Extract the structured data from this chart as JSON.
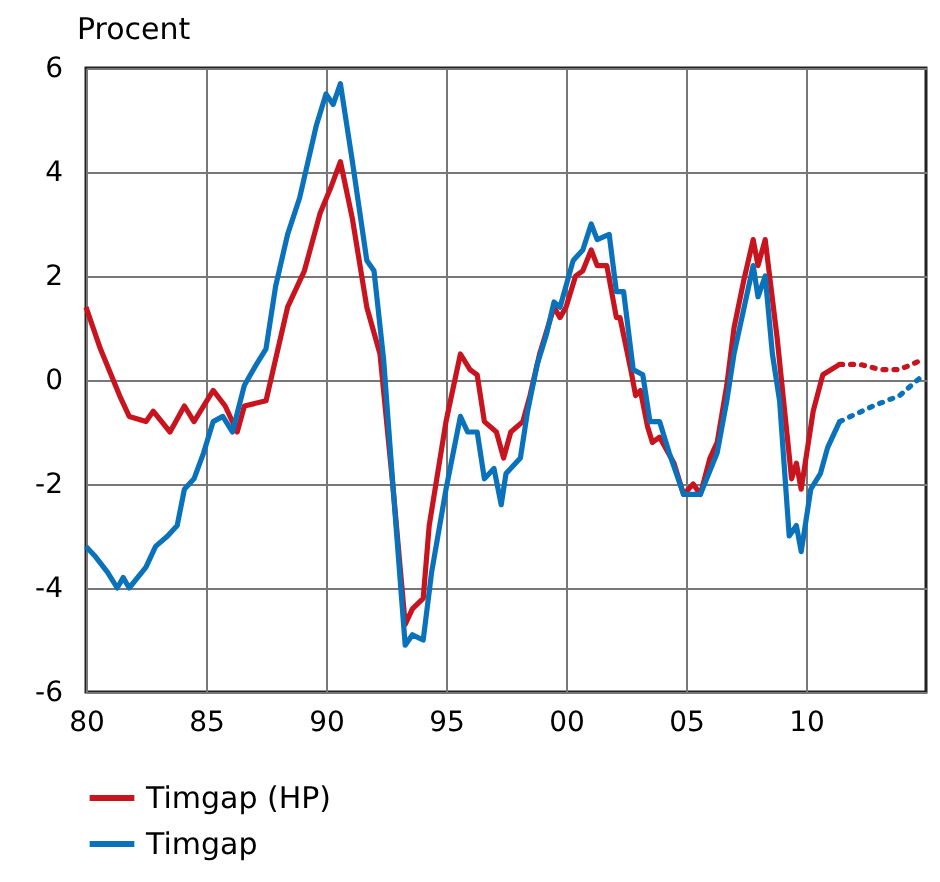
{
  "chart_data": {
    "type": "line",
    "ylabel": "Procent",
    "xlim": [
      1980,
      2015
    ],
    "xticks": [
      {
        "value": 1980,
        "label": "80"
      },
      {
        "value": 1985,
        "label": "85"
      },
      {
        "value": 1990,
        "label": "90"
      },
      {
        "value": 1995,
        "label": "95"
      },
      {
        "value": 2000,
        "label": "00"
      },
      {
        "value": 2005,
        "label": "05"
      },
      {
        "value": 2010,
        "label": "10"
      }
    ],
    "ylim": [
      -6,
      6
    ],
    "yticks": [
      -6,
      -4,
      -2,
      0,
      2,
      4,
      6
    ],
    "grid": true,
    "legend": "bottom",
    "series": [
      {
        "name": "Timgap (HP)",
        "color": "#c8141e",
        "line_style": "solid",
        "x": [
          1980.0,
          1980.6,
          1981.4,
          1981.8,
          1982.5,
          1982.8,
          1983.5,
          1984.1,
          1984.5,
          1985.3,
          1985.8,
          1986.3,
          1986.6,
          1987.5,
          1988.4,
          1989.1,
          1989.75,
          1990.2,
          1990.6,
          1991.1,
          1991.7,
          1992.25,
          1992.8,
          1993.3,
          1993.6,
          1994.05,
          1994.3,
          1995.0,
          1995.6,
          1996.0,
          1996.3,
          1996.6,
          1997.1,
          1997.4,
          1997.7,
          1998.2,
          1998.5,
          1998.9,
          1999.5,
          1999.75,
          2000.0,
          2000.4,
          2000.7,
          2001.05,
          2001.3,
          2001.7,
          2002.1,
          2002.25,
          2002.7,
          2002.9,
          2003.1,
          2003.4,
          2003.6,
          2003.9,
          2004.5,
          2004.9,
          2005.3,
          2005.6,
          2006.0,
          2006.3,
          2006.7,
          2007.0,
          2007.4,
          2007.8,
          2008.0,
          2008.3,
          2008.8,
          2009.2,
          2009.4,
          2009.6,
          2009.8,
          2010.3,
          2010.7,
          2011.4
        ],
        "values": [
          1.4,
          0.6,
          -0.3,
          -0.7,
          -0.8,
          -0.6,
          -1.0,
          -0.5,
          -0.8,
          -0.2,
          -0.5,
          -1.0,
          -0.5,
          -0.4,
          1.4,
          2.1,
          3.2,
          3.7,
          4.2,
          3.1,
          1.4,
          0.5,
          -2.1,
          -4.7,
          -4.4,
          -4.2,
          -2.8,
          -0.8,
          0.5,
          0.2,
          0.1,
          -0.8,
          -1.0,
          -1.5,
          -1.0,
          -0.8,
          -0.3,
          0.5,
          1.4,
          1.2,
          1.4,
          2.0,
          2.1,
          2.5,
          2.2,
          2.2,
          1.2,
          1.2,
          0.2,
          -0.3,
          -0.2,
          -0.9,
          -1.2,
          -1.1,
          -1.6,
          -2.2,
          -2.0,
          -2.2,
          -1.5,
          -1.2,
          -0.1,
          1.0,
          1.9,
          2.7,
          2.2,
          2.7,
          0.8,
          -1.0,
          -1.9,
          -1.6,
          -2.1,
          -0.6,
          0.1,
          0.3
        ]
      },
      {
        "name": "Timgap",
        "color": "#0a72ba",
        "line_style": "solid",
        "x": [
          1980.0,
          1980.4,
          1980.9,
          1981.3,
          1981.55,
          1981.8,
          1982.5,
          1982.9,
          1983.4,
          1983.8,
          1984.1,
          1984.5,
          1984.9,
          1985.3,
          1985.7,
          1986.1,
          1986.6,
          1987.1,
          1987.5,
          1987.9,
          1988.4,
          1988.9,
          1989.6,
          1990.0,
          1990.3,
          1990.6,
          1991.1,
          1991.7,
          1992.0,
          1992.4,
          1992.8,
          1993.3,
          1993.6,
          1994.05,
          1994.4,
          1995.0,
          1995.6,
          1995.9,
          1996.3,
          1996.6,
          1997.0,
          1997.3,
          1997.5,
          1998.1,
          1998.4,
          1998.8,
          1999.2,
          1999.5,
          1999.75,
          2000.3,
          2000.7,
          2001.05,
          2001.3,
          2001.8,
          2002.1,
          2002.4,
          2002.8,
          2003.2,
          2003.5,
          2003.9,
          2004.3,
          2004.9,
          2005.2,
          2005.6,
          2006.3,
          2006.7,
          2007.0,
          2007.8,
          2008.0,
          2008.3,
          2008.6,
          2008.9,
          2009.3,
          2009.6,
          2009.8,
          2010.2,
          2010.6,
          2010.9,
          2011.4
        ],
        "values": [
          -3.2,
          -3.4,
          -3.7,
          -4.0,
          -3.8,
          -4.0,
          -3.6,
          -3.2,
          -3.0,
          -2.8,
          -2.1,
          -1.9,
          -1.4,
          -0.8,
          -0.7,
          -1.0,
          -0.1,
          0.3,
          0.6,
          1.8,
          2.8,
          3.5,
          4.9,
          5.5,
          5.3,
          5.7,
          4.2,
          2.3,
          2.1,
          0.4,
          -2.1,
          -5.1,
          -4.9,
          -5.0,
          -3.7,
          -2.1,
          -0.7,
          -1.0,
          -1.0,
          -1.9,
          -1.7,
          -2.4,
          -1.8,
          -1.5,
          -0.6,
          0.3,
          0.9,
          1.5,
          1.4,
          2.3,
          2.5,
          3.0,
          2.7,
          2.8,
          1.7,
          1.7,
          0.2,
          0.1,
          -0.8,
          -0.8,
          -1.4,
          -2.2,
          -2.2,
          -2.2,
          -1.4,
          -0.4,
          0.5,
          2.2,
          1.6,
          2.0,
          0.5,
          -0.4,
          -3.0,
          -2.8,
          -3.3,
          -2.1,
          -1.8,
          -1.3,
          -0.8
        ]
      },
      {
        "color": "#c8141e",
        "line_style": "dotted",
        "x": [
          2011.4,
          2012.25,
          2013.1,
          2013.9,
          2014.9
        ],
        "values": [
          0.3,
          0.3,
          0.2,
          0.2,
          0.4
        ]
      },
      {
        "color": "#0a72ba",
        "line_style": "dotted",
        "x": [
          2011.4,
          2012.8,
          2013.9,
          2014.9
        ],
        "values": [
          -0.8,
          -0.5,
          -0.3,
          0.1
        ]
      }
    ]
  }
}
